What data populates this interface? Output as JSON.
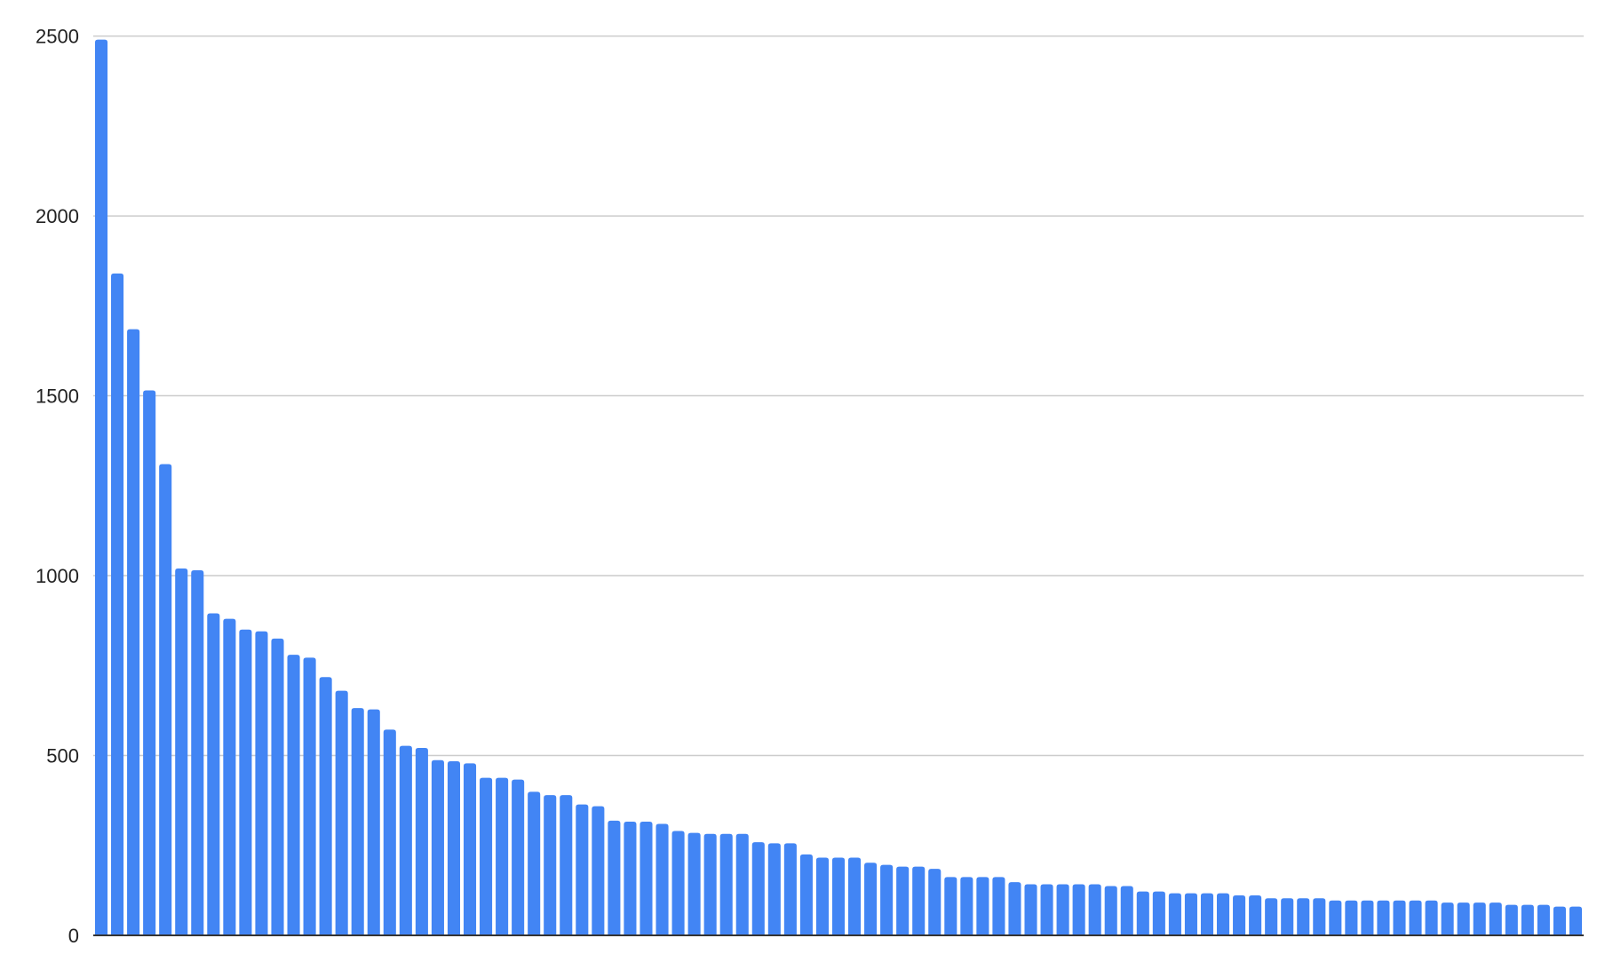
{
  "chart_data": {
    "type": "bar",
    "title": "",
    "xlabel": "",
    "ylabel": "",
    "ylim": [
      0,
      2500
    ],
    "yticks": [
      "0",
      "500",
      "1000",
      "1500",
      "2000",
      "2500"
    ],
    "grid": true,
    "legend": "none",
    "bar_color": "#4285f4",
    "values": [
      2490,
      1840,
      1685,
      1515,
      1310,
      1020,
      1015,
      895,
      880,
      850,
      845,
      825,
      780,
      772,
      718,
      680,
      632,
      628,
      572,
      527,
      521,
      487,
      484,
      478,
      438,
      438,
      433,
      399,
      390,
      390,
      364,
      359,
      319,
      316,
      316,
      310,
      290,
      285,
      282,
      282,
      282,
      259,
      256,
      256,
      225,
      216,
      216,
      216,
      202,
      196,
      191,
      191,
      185,
      162,
      162,
      162,
      162,
      148,
      142,
      142,
      142,
      142,
      142,
      137,
      137,
      122,
      122,
      117,
      117,
      117,
      117,
      111,
      111,
      103,
      103,
      103,
      103,
      97,
      97,
      97,
      97,
      97,
      97,
      97,
      91,
      91,
      91,
      91,
      85,
      85,
      85,
      80,
      80
    ]
  }
}
